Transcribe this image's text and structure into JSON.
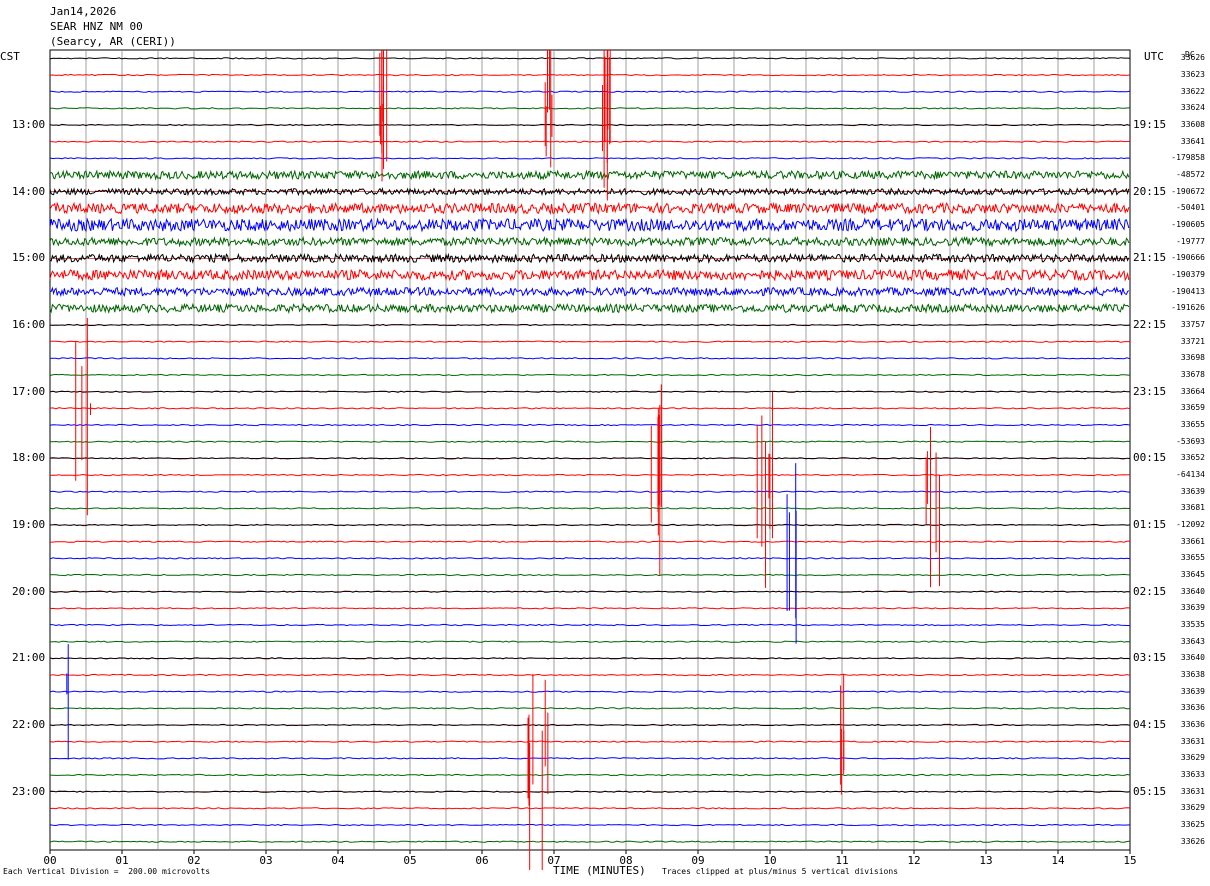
{
  "header": {
    "date": "Jan14,2026",
    "station": "SEAR HNZ NM 00",
    "location": "(Searcy, AR (CERI))"
  },
  "left_axis_label": "CST",
  "right_axis_label": "UTC",
  "dc_label": "DC",
  "footer": {
    "scale_note": "Each Vertical Division =  200.00 microvolts",
    "xlabel": "TIME (MINUTES)",
    "clip_note": "Traces clipped at plus/minus 5 vertical divisions"
  },
  "chart_data": {
    "type": "line",
    "title": "Jan14,2026 SEAR HNZ NM 00 (Searcy, AR (CERI))",
    "xlabel": "TIME (MINUTES)",
    "xlim": [
      0,
      15
    ],
    "x_ticks": [
      "00",
      "01",
      "02",
      "03",
      "04",
      "05",
      "06",
      "07",
      "08",
      "09",
      "10",
      "11",
      "12",
      "13",
      "14",
      "15"
    ],
    "rows_per_hour": 4,
    "minutes_per_row": 15,
    "cst_hour_labels": [
      "13:00",
      "14:00",
      "15:00",
      "16:00",
      "17:00",
      "18:00",
      "19:00",
      "20:00",
      "21:00",
      "22:00",
      "23:00"
    ],
    "utc_hour_labels": [
      "19:15",
      "20:15",
      "21:15",
      "22:15",
      "23:15",
      "00:15",
      "01:15",
      "02:15",
      "03:15",
      "04:15",
      "05:15"
    ],
    "series_colors": [
      "#000000",
      "#ff0000",
      "#0000ff",
      "#006400"
    ],
    "dc_offsets": [
      "33626",
      "33623",
      "33622",
      "33624",
      "33608",
      "33641",
      "-179858",
      "-48572",
      "-190672",
      "-50401",
      "-190605",
      "-19777",
      "-190666",
      "-190379",
      "-190413",
      "-191626",
      "33757",
      "33721",
      "33698",
      "33678",
      "33664",
      "33659",
      "33655",
      "-53693",
      "33652",
      "-64134",
      "33639",
      "33681",
      "-12092",
      "33661",
      "33655",
      "33645",
      "33640",
      "33639",
      "33535",
      "33643",
      "33640",
      "33638",
      "33639",
      "33636",
      "33636",
      "33631",
      "33629",
      "33633",
      "33631",
      "33629",
      "33625",
      "33626"
    ],
    "grid": true
  }
}
